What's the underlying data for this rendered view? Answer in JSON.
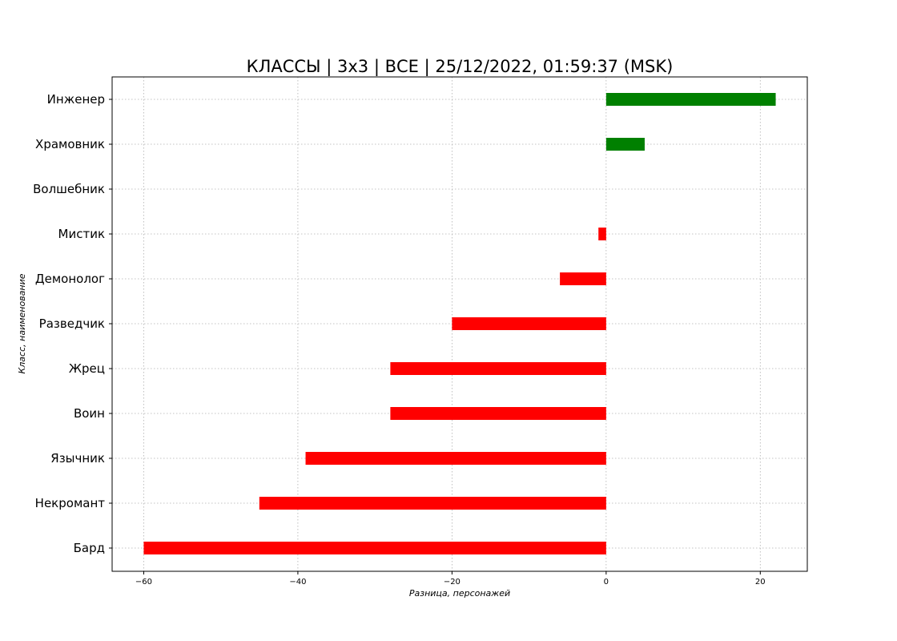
{
  "chart_data": {
    "type": "bar",
    "orientation": "horizontal",
    "title": "КЛАССЫ | 3х3 | ВСЕ | 25/12/2022, 01:59:37 (MSK)",
    "xlabel": "Разница, персонажей",
    "ylabel": "Класс, наименование",
    "categories": [
      "Бард",
      "Некромант",
      "Язычник",
      "Воин",
      "Жрец",
      "Разведчик",
      "Демонолог",
      "Мистик",
      "Волшебник",
      "Храмовник",
      "Инженер"
    ],
    "values": [
      -60,
      -45,
      -39,
      -28,
      -28,
      -20,
      -6,
      -1,
      0,
      5,
      22
    ],
    "xlim": [
      -64.1,
      26.1
    ],
    "xticks": [
      -60,
      -40,
      -20,
      0,
      20
    ],
    "xtick_labels": [
      "−60",
      "−40",
      "−20",
      "0",
      "20"
    ],
    "grid": true,
    "colors": {
      "positive": "#008000",
      "negative": "#ff0000"
    }
  }
}
